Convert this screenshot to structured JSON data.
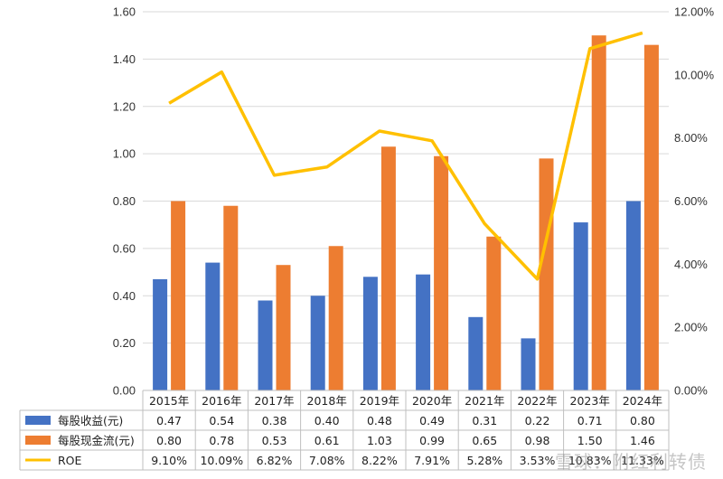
{
  "chart_data": {
    "type": "bar",
    "categories": [
      "2015年",
      "2016年",
      "2017年",
      "2018年",
      "2019年",
      "2020年",
      "2021年",
      "2022年",
      "2023年",
      "2024年"
    ],
    "series": [
      {
        "name": "每股收益(元)",
        "kind": "bar",
        "axis": "left",
        "color": "#4472C4",
        "values": [
          0.47,
          0.54,
          0.38,
          0.4,
          0.48,
          0.49,
          0.31,
          0.22,
          0.71,
          0.8
        ],
        "labels": [
          "0.47",
          "0.54",
          "0.38",
          "0.40",
          "0.48",
          "0.49",
          "0.31",
          "0.22",
          "0.71",
          "0.80"
        ]
      },
      {
        "name": "每股现金流(元)",
        "kind": "bar",
        "axis": "left",
        "color": "#ED7D31",
        "values": [
          0.8,
          0.78,
          0.53,
          0.61,
          1.03,
          0.99,
          0.65,
          0.98,
          1.5,
          1.46
        ],
        "labels": [
          "0.80",
          "0.78",
          "0.53",
          "0.61",
          "1.03",
          "0.99",
          "0.65",
          "0.98",
          "1.50",
          "1.46"
        ]
      },
      {
        "name": "ROE",
        "kind": "line",
        "axis": "right",
        "color": "#FFC000",
        "values": [
          9.1,
          10.09,
          6.82,
          7.08,
          8.22,
          7.91,
          5.28,
          3.53,
          10.83,
          11.33
        ],
        "labels": [
          "9.10%",
          "10.09%",
          "6.82%",
          "7.08%",
          "8.22%",
          "7.91%",
          "5.28%",
          "3.53%",
          "10.83%",
          "11.33%"
        ]
      }
    ],
    "ylim": [
      0,
      1.6
    ],
    "yticks": [
      "0.00",
      "0.20",
      "0.40",
      "0.60",
      "0.80",
      "1.00",
      "1.20",
      "1.40",
      "1.60"
    ],
    "y2lim": [
      0,
      12
    ],
    "y2ticks": [
      "0.00%",
      "2.00%",
      "4.00%",
      "6.00%",
      "8.00%",
      "10.00%",
      "12.00%"
    ],
    "grid": true,
    "legend": "data-table-bottom"
  },
  "watermark": "雪球：附红利转债"
}
